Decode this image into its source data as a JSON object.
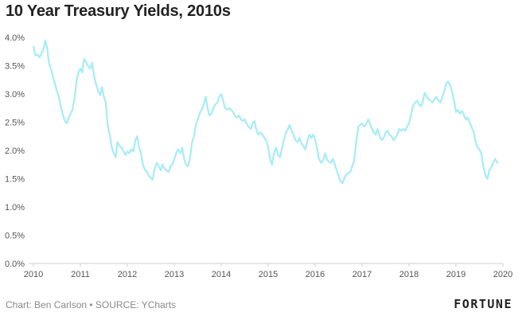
{
  "title": "10 Year Treasury Yields, 2010s",
  "credit": "Chart: Ben Carlson • SOURCE: YCharts",
  "logo_text": "FORTUNE",
  "line_color": "#a6ecf6",
  "chart_data": {
    "type": "line",
    "title": "10 Year Treasury Yields, 2010s",
    "xlabel": "",
    "ylabel": "",
    "xlim": [
      2010,
      2020
    ],
    "ylim": [
      0,
      4
    ],
    "x_ticks": [
      2010,
      2011,
      2012,
      2013,
      2014,
      2015,
      2016,
      2017,
      2018,
      2019,
      2020
    ],
    "x_tick_labels": [
      "2010",
      "2011",
      "2012",
      "2013",
      "2014",
      "2015",
      "2016",
      "2017",
      "2018",
      "2019",
      "2020"
    ],
    "y_ticks": [
      0,
      0.5,
      1.0,
      1.5,
      2.0,
      2.5,
      3.0,
      3.5,
      4.0
    ],
    "y_tick_labels": [
      "0.0%",
      "0.5%",
      "1.0%",
      "1.5%",
      "2.0%",
      "2.5%",
      "3.0%",
      "3.5%",
      "4.0%"
    ],
    "grid": false,
    "legend": "none",
    "series": [
      {
        "x": [
          2010.0,
          2010.04,
          2010.08,
          2010.13,
          2010.17,
          2010.21,
          2010.25,
          2010.29,
          2010.33,
          2010.38,
          2010.42,
          2010.46,
          2010.5,
          2010.54,
          2010.58,
          2010.63,
          2010.67,
          2010.71,
          2010.75,
          2010.79,
          2010.83,
          2010.88,
          2010.92,
          2010.96,
          2011.0,
          2011.04,
          2011.08,
          2011.13,
          2011.17,
          2011.21,
          2011.25,
          2011.29,
          2011.33,
          2011.38,
          2011.42,
          2011.46,
          2011.5,
          2011.54,
          2011.58,
          2011.63,
          2011.67,
          2011.71,
          2011.75,
          2011.79,
          2011.83,
          2011.88,
          2011.92,
          2011.96,
          2012.0,
          2012.04,
          2012.08,
          2012.13,
          2012.17,
          2012.21,
          2012.25,
          2012.29,
          2012.33,
          2012.38,
          2012.42,
          2012.46,
          2012.5,
          2012.54,
          2012.58,
          2012.63,
          2012.67,
          2012.71,
          2012.75,
          2012.79,
          2012.83,
          2012.88,
          2012.92,
          2012.96,
          2013.0,
          2013.04,
          2013.08,
          2013.13,
          2013.17,
          2013.21,
          2013.25,
          2013.29,
          2013.33,
          2013.38,
          2013.42,
          2013.46,
          2013.5,
          2013.54,
          2013.58,
          2013.63,
          2013.67,
          2013.71,
          2013.75,
          2013.79,
          2013.83,
          2013.88,
          2013.92,
          2013.96,
          2014.0,
          2014.04,
          2014.08,
          2014.13,
          2014.17,
          2014.21,
          2014.25,
          2014.29,
          2014.33,
          2014.38,
          2014.42,
          2014.46,
          2014.5,
          2014.54,
          2014.58,
          2014.63,
          2014.67,
          2014.71,
          2014.75,
          2014.79,
          2014.83,
          2014.88,
          2014.92,
          2014.96,
          2015.0,
          2015.04,
          2015.08,
          2015.13,
          2015.17,
          2015.21,
          2015.25,
          2015.29,
          2015.33,
          2015.38,
          2015.42,
          2015.46,
          2015.5,
          2015.54,
          2015.58,
          2015.63,
          2015.67,
          2015.71,
          2015.75,
          2015.79,
          2015.83,
          2015.88,
          2015.92,
          2015.96,
          2016.0,
          2016.04,
          2016.08,
          2016.13,
          2016.17,
          2016.21,
          2016.25,
          2016.29,
          2016.33,
          2016.38,
          2016.42,
          2016.46,
          2016.5,
          2016.54,
          2016.58,
          2016.63,
          2016.67,
          2016.71,
          2016.75,
          2016.79,
          2016.83,
          2016.88,
          2016.92,
          2016.96,
          2017.0,
          2017.04,
          2017.08,
          2017.13,
          2017.17,
          2017.21,
          2017.25,
          2017.29,
          2017.33,
          2017.38,
          2017.42,
          2017.46,
          2017.5,
          2017.54,
          2017.58,
          2017.63,
          2017.67,
          2017.71,
          2017.75,
          2017.79,
          2017.83,
          2017.88,
          2017.92,
          2017.96,
          2018.0,
          2018.04,
          2018.08,
          2018.13,
          2018.17,
          2018.21,
          2018.25,
          2018.29,
          2018.33,
          2018.38,
          2018.42,
          2018.46,
          2018.5,
          2018.54,
          2018.58,
          2018.63,
          2018.67,
          2018.71,
          2018.75,
          2018.79,
          2018.83,
          2018.88,
          2018.92,
          2018.96,
          2019.0,
          2019.04,
          2019.08,
          2019.13,
          2019.17,
          2019.21,
          2019.25,
          2019.29,
          2019.33,
          2019.38,
          2019.42,
          2019.46,
          2019.5,
          2019.54,
          2019.58,
          2019.63,
          2019.67,
          2019.71,
          2019.75,
          2019.79,
          2019.83,
          2019.88
        ],
        "values": [
          3.84,
          3.68,
          3.7,
          3.65,
          3.72,
          3.78,
          3.95,
          3.82,
          3.55,
          3.42,
          3.28,
          3.18,
          3.05,
          2.95,
          2.78,
          2.62,
          2.52,
          2.48,
          2.58,
          2.65,
          2.72,
          2.95,
          3.25,
          3.38,
          3.45,
          3.38,
          3.62,
          3.55,
          3.48,
          3.45,
          3.55,
          3.32,
          3.18,
          3.05,
          2.98,
          3.12,
          2.95,
          2.85,
          2.45,
          2.25,
          2.05,
          1.95,
          1.88,
          2.15,
          2.08,
          2.05,
          1.98,
          1.92,
          1.98,
          1.95,
          2.02,
          1.98,
          2.18,
          2.25,
          2.05,
          1.95,
          1.75,
          1.65,
          1.62,
          1.55,
          1.52,
          1.48,
          1.68,
          1.78,
          1.72,
          1.65,
          1.75,
          1.68,
          1.65,
          1.62,
          1.72,
          1.75,
          1.85,
          1.95,
          2.02,
          1.95,
          2.05,
          1.85,
          1.75,
          1.72,
          1.85,
          2.15,
          2.25,
          2.45,
          2.55,
          2.65,
          2.72,
          2.82,
          2.95,
          2.75,
          2.62,
          2.65,
          2.75,
          2.82,
          2.85,
          2.95,
          3.0,
          2.88,
          2.75,
          2.72,
          2.75,
          2.72,
          2.68,
          2.62,
          2.58,
          2.62,
          2.55,
          2.52,
          2.55,
          2.48,
          2.42,
          2.38,
          2.48,
          2.52,
          2.35,
          2.28,
          2.32,
          2.28,
          2.22,
          2.18,
          2.05,
          1.85,
          1.75,
          1.98,
          2.05,
          1.92,
          1.88,
          2.02,
          2.18,
          2.32,
          2.38,
          2.45,
          2.35,
          2.28,
          2.18,
          2.15,
          2.22,
          2.12,
          2.08,
          2.02,
          2.15,
          2.28,
          2.22,
          2.28,
          2.18,
          2.05,
          1.85,
          1.78,
          1.82,
          1.95,
          1.85,
          1.8,
          1.78,
          1.85,
          1.75,
          1.65,
          1.55,
          1.45,
          1.42,
          1.52,
          1.58,
          1.6,
          1.62,
          1.72,
          1.82,
          2.18,
          2.42,
          2.45,
          2.48,
          2.42,
          2.45,
          2.55,
          2.48,
          2.38,
          2.32,
          2.28,
          2.38,
          2.25,
          2.18,
          2.22,
          2.32,
          2.35,
          2.28,
          2.25,
          2.18,
          2.22,
          2.28,
          2.38,
          2.35,
          2.38,
          2.35,
          2.42,
          2.48,
          2.62,
          2.78,
          2.85,
          2.88,
          2.82,
          2.78,
          2.85,
          3.02,
          2.95,
          2.9,
          2.88,
          2.85,
          2.9,
          2.95,
          2.88,
          2.85,
          2.95,
          3.05,
          3.18,
          3.22,
          3.15,
          3.02,
          2.88,
          2.68,
          2.72,
          2.65,
          2.7,
          2.62,
          2.55,
          2.58,
          2.5,
          2.42,
          2.32,
          2.15,
          2.05,
          2.02,
          1.95,
          1.72,
          1.55,
          1.5,
          1.65,
          1.7,
          1.78,
          1.85,
          1.78
        ]
      }
    ]
  }
}
